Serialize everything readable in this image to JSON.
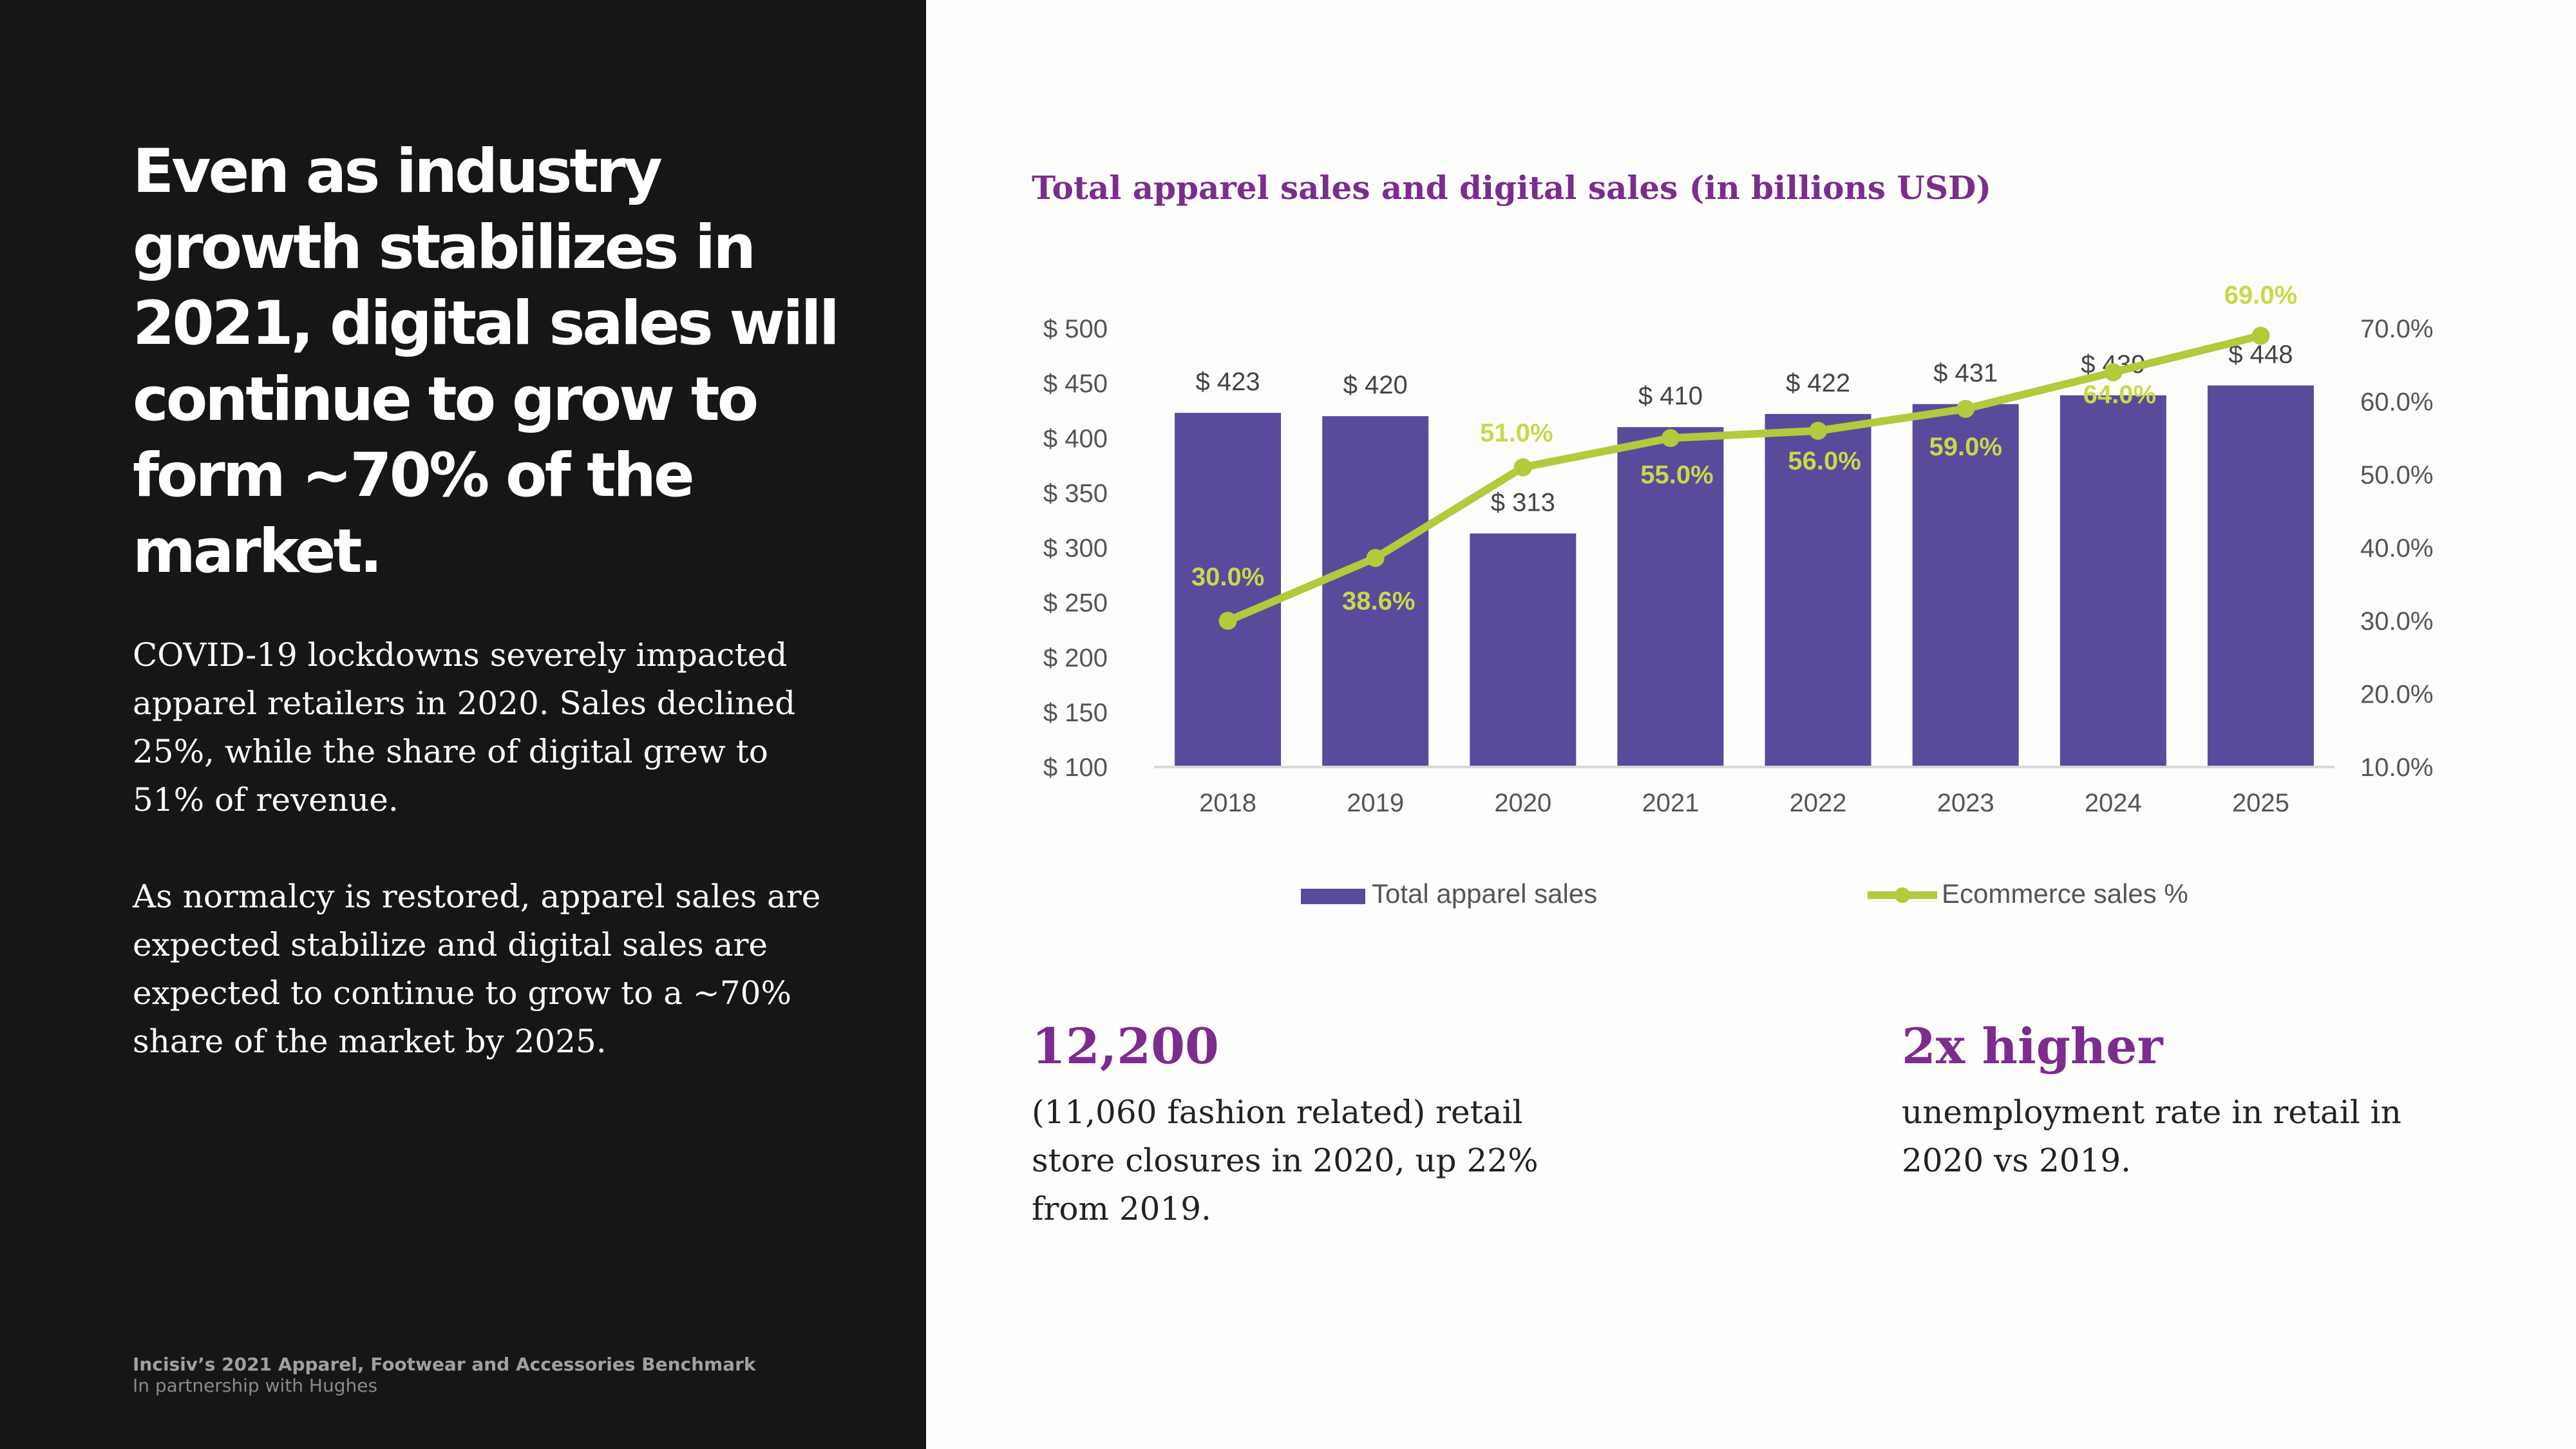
{
  "headline": "Even as industry growth stabilizes in 2021, digital sales will continue to grow to form ~70% of the market.",
  "paragraphs": [
    "COVID-19 lockdowns severely impacted apparel retailers in 2020. Sales declined 25%, while the share of digital grew to 51% of revenue.",
    "As normalcy is restored, apparel sales are expected stabilize and digital sales are expected to continue to grow to a ~70% share of the market by 2025."
  ],
  "footer": {
    "title": "Incisiv’s 2021 Apparel, Footwear and Accessories Benchmark",
    "subtitle": "In partnership with Hughes"
  },
  "stats": [
    {
      "headline": "12,200",
      "text": "(11,060 fashion related) retail store closures in 2020, up 22% from 2019."
    },
    {
      "headline": "2x higher",
      "text": "unemployment rate in retail in 2020 vs 2019."
    }
  ],
  "colors": {
    "left_panel": "#161616",
    "accent_purple": "#7b2d8e",
    "bar": "#5a4a9c",
    "line": "#b4c93c",
    "line_label": "#c8d94a"
  },
  "chart_data": {
    "type": "bar",
    "title": "Total apparel sales and digital sales (in billions USD)",
    "categories": [
      "2018",
      "2019",
      "2020",
      "2021",
      "2022",
      "2023",
      "2024",
      "2025"
    ],
    "series": [
      {
        "name": "Total apparel sales",
        "type": "bar",
        "axis": "left",
        "values": [
          423,
          420,
          313,
          410,
          422,
          431,
          439,
          448
        ],
        "labels": [
          "$ 423",
          "$ 420",
          "$ 313",
          "$ 410",
          "$ 422",
          "$ 431",
          "$ 439",
          "$ 448"
        ]
      },
      {
        "name": "Ecommerce sales %",
        "type": "line",
        "axis": "right",
        "values": [
          30.0,
          38.6,
          51.0,
          55.0,
          56.0,
          59.0,
          64.0,
          69.0
        ],
        "labels": [
          "30.0%",
          "38.6%",
          "51.0%",
          "55.0%",
          "56.0%",
          "59.0%",
          "64.0%",
          "69.0%"
        ]
      }
    ],
    "ylim_left": [
      100,
      500
    ],
    "yticks_left": [
      "$ 500",
      "$ 450",
      "$ 400",
      "$ 350",
      "$ 300",
      "$ 250",
      "$ 200",
      "$ 150",
      "$ 100"
    ],
    "ylim_right": [
      10,
      70
    ],
    "yticks_right": [
      "70.0%",
      "60.0%",
      "50.0%",
      "40.0%",
      "30.0%",
      "20.0%",
      "10.0%"
    ],
    "legend": "bottom",
    "grid": false
  }
}
